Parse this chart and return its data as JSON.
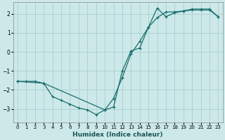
{
  "xlabel": "Humidex (Indice chaleur)",
  "bg_color": "#cce8e8",
  "grid_color": "#aacfcf",
  "line_color": "#1a6e6e",
  "xlim": [
    -0.5,
    23.5
  ],
  "ylim": [
    -3.7,
    2.6
  ],
  "line1_x": [
    0,
    1,
    2,
    3,
    4,
    5,
    6,
    7,
    8,
    9,
    10,
    11,
    12,
    13,
    14,
    15,
    16,
    17,
    18,
    19,
    20,
    21,
    22,
    23
  ],
  "line1_y": [
    -1.55,
    -1.55,
    -1.55,
    -1.65,
    -2.35,
    -2.55,
    -2.75,
    -2.95,
    -3.05,
    -3.3,
    -3.05,
    -2.45,
    -1.35,
    -0.1,
    0.55,
    1.3,
    1.8,
    2.1,
    2.1,
    2.15,
    2.2,
    2.2,
    2.2,
    1.85
  ],
  "line2_x": [
    0,
    3,
    10,
    11,
    12,
    13,
    14,
    15,
    16,
    17,
    18,
    19,
    20,
    21,
    22,
    23
  ],
  "line2_y": [
    -1.55,
    -1.65,
    -3.05,
    -2.9,
    -1.0,
    0.05,
    0.2,
    1.3,
    2.3,
    1.85,
    2.05,
    2.15,
    2.25,
    2.25,
    2.25,
    1.85
  ],
  "xticks": [
    0,
    1,
    2,
    3,
    4,
    5,
    6,
    7,
    8,
    9,
    10,
    11,
    12,
    13,
    14,
    15,
    16,
    17,
    18,
    19,
    20,
    21,
    22,
    23
  ],
  "yticks": [
    -3,
    -2,
    -1,
    0,
    1,
    2
  ]
}
